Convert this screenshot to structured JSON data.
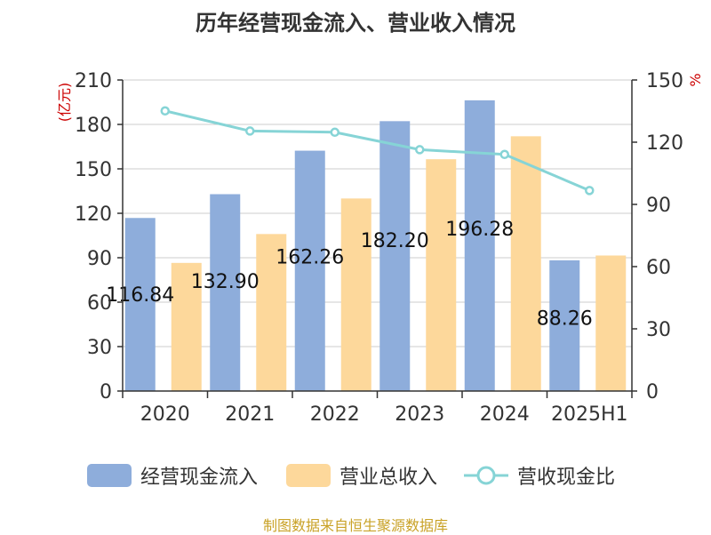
{
  "chart_data": {
    "type": "bar",
    "title": "历年经营现金流入、营业收入情况",
    "categories": [
      "2020",
      "2021",
      "2022",
      "2023",
      "2024",
      "2025H1"
    ],
    "series": [
      {
        "name": "经营现金流入",
        "type": "bar",
        "axis": "left",
        "color": "#8EADDB",
        "values": [
          116.84,
          132.9,
          162.26,
          182.2,
          196.28,
          88.26
        ],
        "labels": [
          "116.84",
          "132.90",
          "162.26",
          "182.20",
          "196.28",
          "88.26"
        ]
      },
      {
        "name": "营业总收入",
        "type": "bar",
        "axis": "left",
        "color": "#FDD89B",
        "values": [
          86.5,
          106.0,
          130.0,
          156.5,
          172.0,
          91.5
        ]
      },
      {
        "name": "营收现金比",
        "type": "line",
        "axis": "right",
        "color": "#86D4D6",
        "values": [
          135.1,
          125.4,
          124.8,
          116.4,
          114.1,
          96.7
        ]
      }
    ],
    "ylabel": "(亿元)",
    "ylabel_right": "%",
    "ylim": [
      0,
      210
    ],
    "yticks": [
      "0",
      "30",
      "60",
      "90",
      "120",
      "150",
      "180",
      "210"
    ],
    "ylim_right": [
      0,
      150
    ],
    "yticks_right": [
      "0",
      "30",
      "60",
      "90",
      "120",
      "150"
    ],
    "grid": true,
    "legend_position": "bottom",
    "source": "制图数据来自恒生聚源数据库"
  }
}
